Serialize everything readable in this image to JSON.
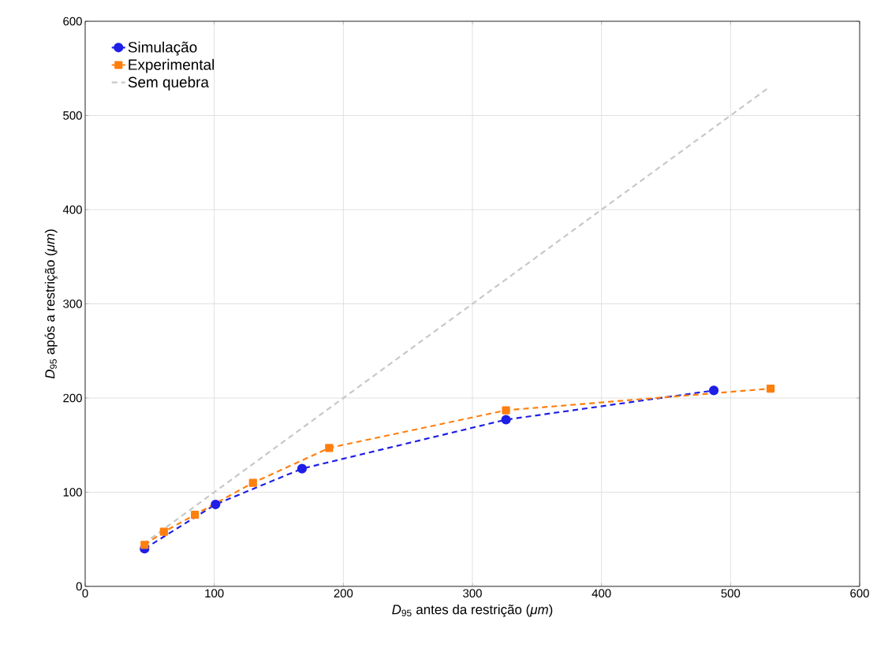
{
  "chart_data": {
    "type": "line",
    "xlabel": "*D*$_{95}$ antes da restrição (*μm*)",
    "ylabel": "*D*$_{95}$ após a restrição (*μm*)",
    "xlim": [
      0,
      600
    ],
    "ylim": [
      0,
      600
    ],
    "xticks": [
      0,
      100,
      200,
      300,
      400,
      500,
      600
    ],
    "yticks": [
      0,
      100,
      200,
      300,
      400,
      500,
      600
    ],
    "grid": true,
    "legend": "top left",
    "series": [
      {
        "name": "Simulação",
        "color": "#1f1fe6",
        "marker": "circle",
        "line_style": "dashed",
        "x": [
          46,
          101,
          168,
          326,
          487
        ],
        "values": [
          40,
          87,
          125,
          177,
          208
        ]
      },
      {
        "name": "Experimental",
        "color": "#ff7f0e",
        "marker": "square",
        "line_style": "dashed",
        "x": [
          46,
          61,
          85,
          130,
          189,
          326,
          531
        ],
        "values": [
          44,
          58,
          76,
          110,
          147,
          187,
          210
        ]
      },
      {
        "name": "Sem quebra",
        "color": "#c8c8c8",
        "marker": "none",
        "line_style": "dashed",
        "x": [
          45,
          530
        ],
        "values": [
          45,
          530
        ]
      }
    ]
  }
}
